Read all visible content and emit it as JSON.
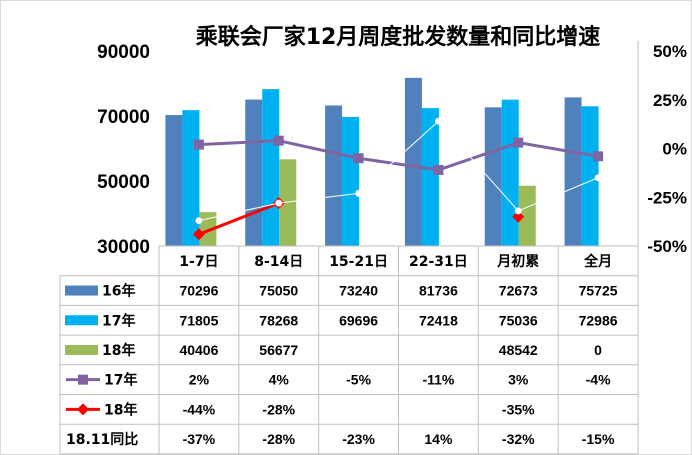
{
  "chart_data": {
    "type": "bar",
    "title": "乘联会厂家12月周度批发数量和同比增速",
    "categories": [
      "1-7日",
      "8-14日",
      "15-21日",
      "22-31日",
      "月初累",
      "全月"
    ],
    "y_left": {
      "ticks": [
        "30000",
        "50000",
        "70000",
        "90000"
      ],
      "ylim": [
        30000,
        90000
      ]
    },
    "y_right": {
      "ticks": [
        "-50%",
        "-25%",
        "0%",
        "25%",
        "50%"
      ],
      "ylim": [
        -50,
        50
      ]
    },
    "bar_series": [
      {
        "name": "16年",
        "color": "#4f81bd",
        "values": [
          70296,
          75050,
          73240,
          81736,
          72673,
          75725
        ],
        "labels": [
          "70296",
          "75050",
          "73240",
          "81736",
          "72673",
          "75725"
        ]
      },
      {
        "name": "17年",
        "color": "#00b0f0",
        "values": [
          71805,
          78268,
          69696,
          72418,
          75036,
          72986
        ],
        "labels": [
          "71805",
          "78268",
          "69696",
          "72418",
          "75036",
          "72986"
        ]
      },
      {
        "name": "18年",
        "color": "#9bbb59",
        "values": [
          40406,
          56677,
          null,
          null,
          48542,
          0
        ],
        "labels": [
          "40406",
          "56677",
          "",
          "",
          "48542",
          "0"
        ]
      }
    ],
    "line_series": [
      {
        "name": "17年",
        "color": "#8064a2",
        "marker": "square",
        "values": [
          2,
          4,
          -5,
          -11,
          3,
          -4
        ],
        "labels": [
          "2%",
          "4%",
          "-5%",
          "-11%",
          "3%",
          "-4%"
        ]
      },
      {
        "name": "18年",
        "color": "#ff0000",
        "marker": "diamond",
        "values": [
          -44,
          -28,
          null,
          null,
          -35,
          null
        ],
        "labels": [
          "-44%",
          "-28%",
          "",
          "",
          "-35%",
          ""
        ]
      },
      {
        "name": "18.11同比",
        "color": "#ffffff",
        "marker": "circle",
        "values": [
          -37,
          -28,
          -23,
          14,
          -32,
          -15
        ],
        "labels": [
          "-37%",
          "-28%",
          "-23%",
          "14%",
          "-32%",
          "-15%"
        ]
      }
    ]
  }
}
